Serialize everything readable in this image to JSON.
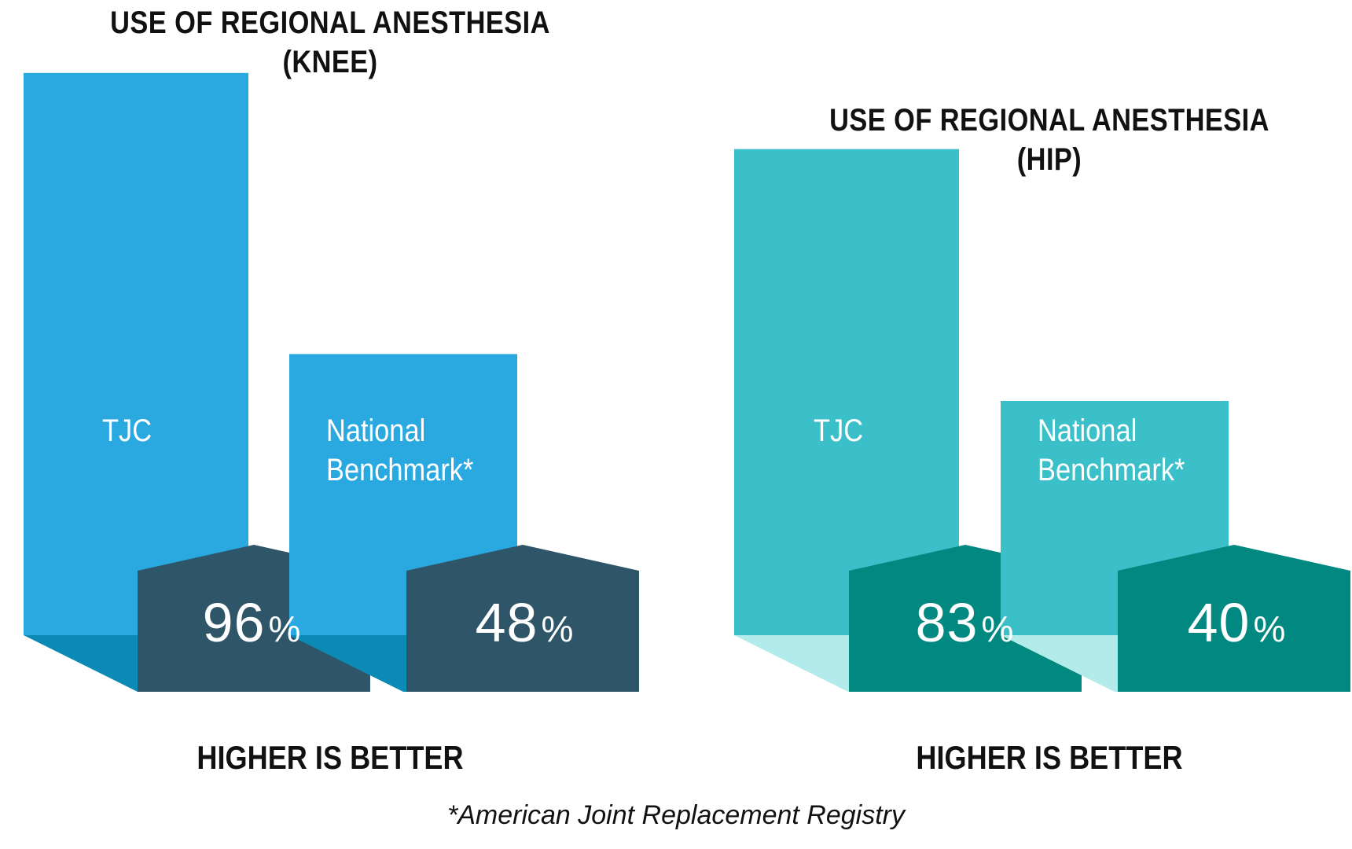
{
  "chart_data": [
    {
      "type": "bar",
      "title": [
        "USE OF REGIONAL ANESTHESIA",
        "(KNEE)"
      ],
      "categories": [
        "TJC",
        "National Benchmark*"
      ],
      "values": [
        96,
        48
      ],
      "value_suffix": "%",
      "note": "HIGHER IS BETTER",
      "colors": {
        "bar": "#2aa8e0",
        "floor": "#0b8ab5",
        "badge": "#2e5568"
      }
    },
    {
      "type": "bar",
      "title": [
        "USE OF REGIONAL ANESTHESIA",
        "(HIP)"
      ],
      "categories": [
        "TJC",
        "National Benchmark*"
      ],
      "values": [
        83,
        40
      ],
      "value_suffix": "%",
      "note": "HIGHER IS BETTER",
      "colors": {
        "bar": "#3bbfc8",
        "floor": "#b2ebea",
        "badge": "#018880"
      }
    }
  ],
  "footnote": "*American Joint Replacement Registry"
}
